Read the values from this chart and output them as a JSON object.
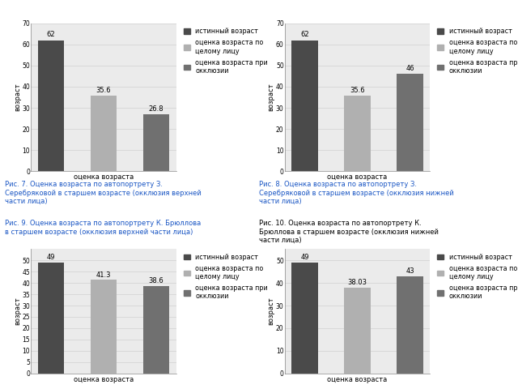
{
  "charts": [
    {
      "values": [
        62,
        35.6,
        26.8
      ],
      "ylim": [
        0,
        70
      ],
      "yticks": [
        0,
        10,
        20,
        30,
        40,
        50,
        60,
        70
      ]
    },
    {
      "values": [
        62,
        35.6,
        46
      ],
      "ylim": [
        0,
        70
      ],
      "yticks": [
        0,
        10,
        20,
        30,
        40,
        50,
        60,
        70
      ]
    },
    {
      "values": [
        49,
        41.3,
        38.6
      ],
      "ylim": [
        0,
        55
      ],
      "yticks": [
        0,
        5,
        10,
        15,
        20,
        25,
        30,
        35,
        40,
        45,
        50
      ]
    },
    {
      "values": [
        49,
        38.03,
        43
      ],
      "ylim": [
        0,
        55
      ],
      "yticks": [
        0,
        10,
        20,
        30,
        40,
        50
      ]
    }
  ],
  "bar_colors": [
    "#4a4a4a",
    "#b0b0b0",
    "#707070"
  ],
  "legend_labels": [
    "истинный возраст",
    "оценка возраста по\nцелому лицу",
    "оценка возраста при\nокклюзии"
  ],
  "caption7": "Рис. 7. Оценка возраста по автопортрету З.\nСеребряковой в старшем возрасте (окклюзия верхней\nчасти лица)",
  "caption8": "Рис. 8. Оценка возраста по автопортрету З.\nСеребряковой в старшем возрасте (окклюзия нижней\nчасти лица)",
  "caption9": "Рис. 9. Оценка возраста по автопортрету К. Брюллова\nв старшем возрасте (окклюзия верхней части лица)",
  "caption10": "Рис. 10. Оценка возраста по автопортрету К.\nБрюллова в старшем возрасте (окклюзия нижней\nчасти лица)",
  "xlabel": "оценка возраста",
  "ylabel": "возраст",
  "caption_color_blue": "#1a56c4",
  "caption_color_black": "#000000",
  "fig_background": "#ffffff",
  "chart_bg": "#ebebeb"
}
